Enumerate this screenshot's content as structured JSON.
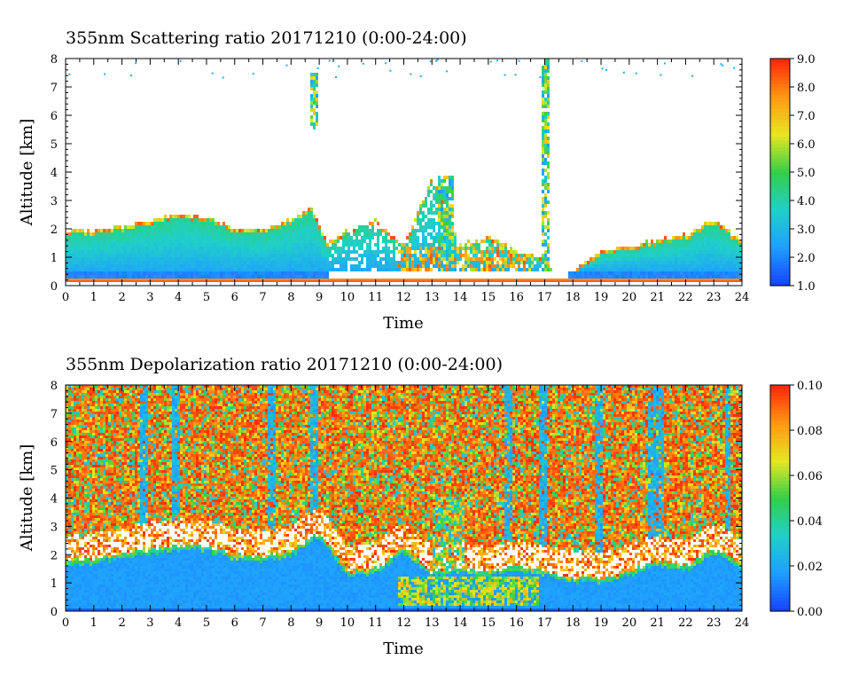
{
  "chart_data": [
    {
      "type": "heatmap",
      "title": "355nm Scattering ratio  20171210 (0:00-24:00)",
      "xlabel": "Time",
      "ylabel": "Altitude [km]",
      "x_ticks": [
        "0",
        "1",
        "2",
        "3",
        "4",
        "5",
        "6",
        "7",
        "8",
        "9",
        "10",
        "11",
        "12",
        "13",
        "14",
        "15",
        "16",
        "17",
        "18",
        "19",
        "20",
        "21",
        "22",
        "23",
        "24"
      ],
      "y_ticks": [
        "0",
        "1",
        "2",
        "3",
        "4",
        "5",
        "6",
        "7",
        "8"
      ],
      "xlim": [
        0,
        24
      ],
      "ylim": [
        0,
        8
      ],
      "colorbar": {
        "min": 1.0,
        "max": 9.0,
        "ticks": [
          "1.0",
          "2.0",
          "3.0",
          "4.0",
          "5.0",
          "6.0",
          "7.0",
          "8.0",
          "9.0"
        ],
        "colormap": "jet"
      },
      "colormap_stops": [
        "#1646ff",
        "#1fa0ff",
        "#20d0c8",
        "#33cf49",
        "#e6e622",
        "#ff9a12",
        "#ff2a0a"
      ],
      "profile": {
        "hours": [
          0,
          1,
          2,
          3,
          4,
          5,
          6,
          7,
          8,
          8.7,
          9.3,
          10,
          11,
          12,
          13,
          14,
          15,
          16,
          16.8,
          17.5,
          18,
          19,
          20,
          21,
          22,
          23,
          24
        ],
        "top_km": [
          1.9,
          1.95,
          2.1,
          2.3,
          2.55,
          2.4,
          2.0,
          2.0,
          2.3,
          2.8,
          1.5,
          2.0,
          2.3,
          1.4,
          3.8,
          1.5,
          1.7,
          1.3,
          1.0,
          0.5,
          0.5,
          1.2,
          1.4,
          1.6,
          1.8,
          2.3,
          1.6
        ]
      },
      "features": [
        {
          "type": "cloud",
          "time": [
            8.65,
            9.0
          ],
          "alt_km": [
            5.5,
            7.5
          ]
        },
        {
          "type": "cloud",
          "time": [
            13.2,
            13.8
          ],
          "alt_km": [
            1.0,
            3.9
          ]
        },
        {
          "type": "cloud",
          "time": [
            16.85,
            17.15
          ],
          "alt_km": [
            0.5,
            8.0
          ]
        }
      ]
    },
    {
      "type": "heatmap",
      "title": "355nm Depolarization ratio  20171210 (0:00-24:00)",
      "xlabel": "Time",
      "ylabel": "Altitude [km]",
      "x_ticks": [
        "0",
        "1",
        "2",
        "3",
        "4",
        "5",
        "6",
        "7",
        "8",
        "9",
        "10",
        "11",
        "12",
        "13",
        "14",
        "15",
        "16",
        "17",
        "18",
        "19",
        "20",
        "21",
        "22",
        "23",
        "24"
      ],
      "y_ticks": [
        "0",
        "1",
        "2",
        "3",
        "4",
        "5",
        "6",
        "7",
        "8"
      ],
      "xlim": [
        0,
        24
      ],
      "ylim": [
        0,
        8
      ],
      "colorbar": {
        "min": 0.0,
        "max": 0.1,
        "ticks": [
          "0.00",
          "0.02",
          "0.04",
          "0.06",
          "0.08",
          "0.10"
        ],
        "colormap": "jet"
      },
      "colormap_stops": [
        "#1646ff",
        "#1fa0ff",
        "#20d0c8",
        "#33cf49",
        "#e6e622",
        "#ff9a12",
        "#ff2a0a"
      ],
      "boundary_layer_top_km": [
        1.8,
        1.85,
        2.0,
        2.2,
        2.3,
        2.3,
        2.0,
        1.9,
        2.1,
        2.8,
        1.4,
        1.5,
        2.2,
        1.4,
        1.5,
        1.4,
        1.6,
        1.4,
        1.2,
        1.2,
        1.4,
        1.8,
        1.6,
        2.2,
        1.7
      ],
      "features": [
        {
          "type": "high-depol",
          "time": [
            11.8,
            16.8
          ],
          "alt_km": [
            0.2,
            1.2
          ]
        },
        {
          "type": "high-depol",
          "time": [
            13.0,
            14.2
          ],
          "alt_km": [
            1.5,
            4.0
          ]
        }
      ]
    }
  ]
}
